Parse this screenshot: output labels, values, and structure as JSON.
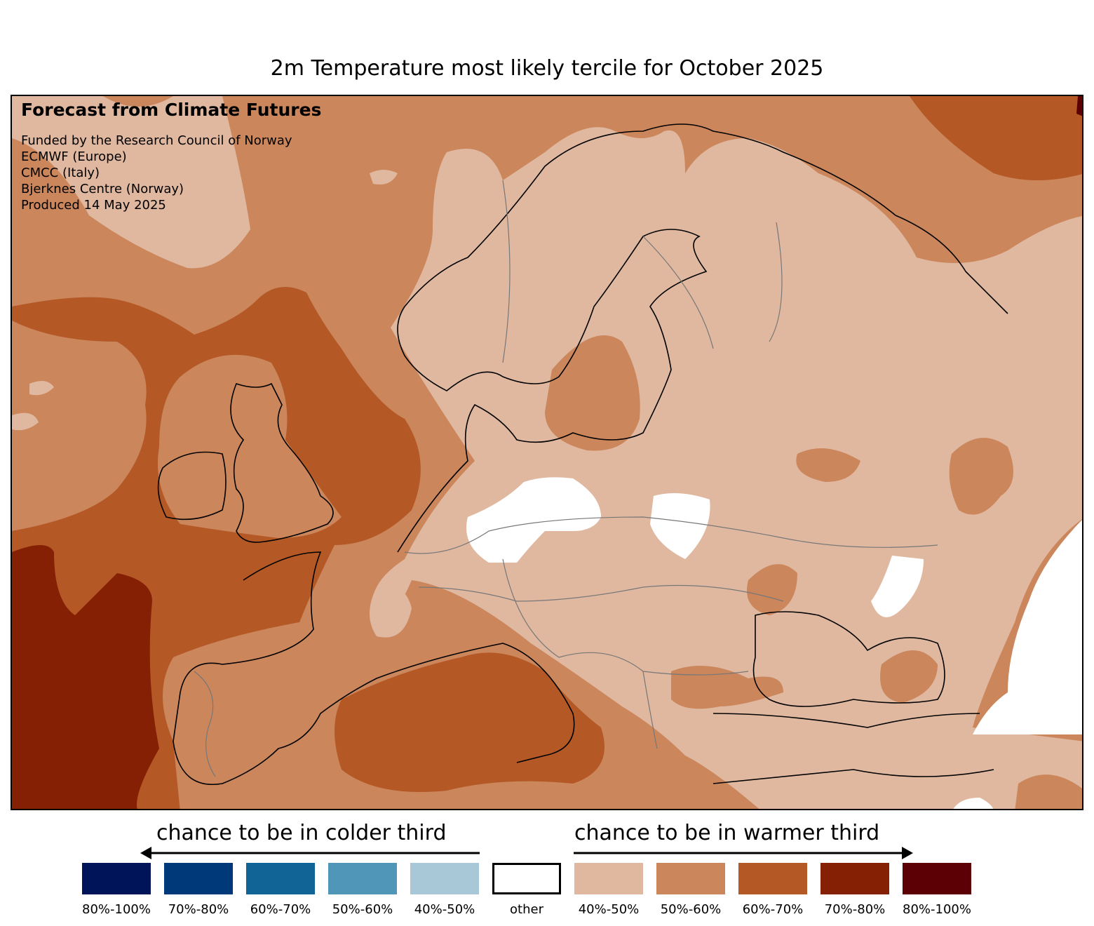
{
  "title": "2m Temperature most likely tercile for October 2025",
  "credits": {
    "heading": "Forecast from Climate Futures",
    "lines": [
      "Funded by the Research Council of Norway",
      "ECMWF (Europe)",
      "CMCC (Italy)",
      "Bjerknes Centre (Norway)",
      "Produced 14 May 2025"
    ]
  },
  "legend": {
    "colder_label": "chance to be in colder third",
    "warmer_label": "chance to be in warmer third",
    "items": [
      {
        "label": "80%-100%",
        "color": "#00145a"
      },
      {
        "label": "70%-80%",
        "color": "#00397a"
      },
      {
        "label": "60%-70%",
        "color": "#106496"
      },
      {
        "label": "50%-60%",
        "color": "#5096b9"
      },
      {
        "label": "40%-50%",
        "color": "#a8c8d8"
      },
      {
        "label": "other",
        "color": "#ffffff"
      },
      {
        "label": "40%-50%",
        "color": "#e0b8a0"
      },
      {
        "label": "50%-60%",
        "color": "#cb865c"
      },
      {
        "label": "60%-70%",
        "color": "#b45826"
      },
      {
        "label": "70%-80%",
        "color": "#862005"
      },
      {
        "label": "80%-100%",
        "color": "#5c0006"
      }
    ]
  }
}
